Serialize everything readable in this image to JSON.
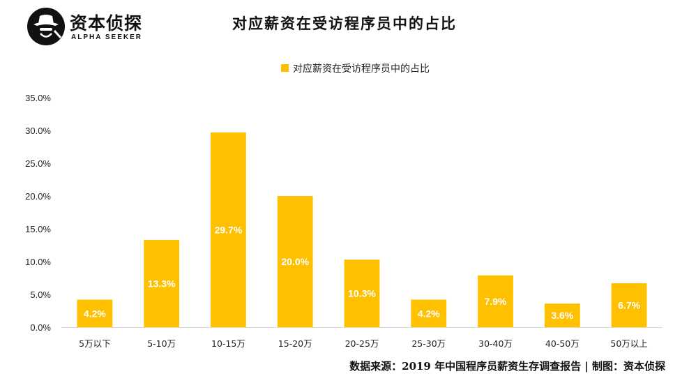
{
  "brand": {
    "name": "资本侦探",
    "tagline": "ALPHA SEEKER",
    "logo_icon": "detective-hat-icon"
  },
  "footer": {
    "source": "数据来源：2019 年中国程序员薪资生存调查报告 | 制图：资本侦探"
  },
  "colors": {
    "bar": "#FFC000",
    "axis": "#d9d9d9",
    "label": "#ffffff"
  },
  "chart_data": {
    "type": "bar",
    "title": "对应薪资在受访程序员中的占比",
    "categories": [
      "5万以下",
      "5-10万",
      "10-15万",
      "15-20万",
      "20-25万",
      "25-30万",
      "30-40万",
      "40-50万",
      "50万以上"
    ],
    "series": [
      {
        "name": "对应薪资在受访程序员中的占比",
        "values": [
          4.2,
          13.3,
          29.7,
          20.0,
          10.3,
          4.2,
          7.9,
          3.6,
          6.7
        ],
        "labels": [
          "4.2%",
          "13.3%",
          "29.7%",
          "20.0%",
          "10.3%",
          "4.2%",
          "7.9%",
          "3.6%",
          "6.7%"
        ]
      }
    ],
    "y_ticks": [
      "0.0%",
      "5.0%",
      "10.0%",
      "15.0%",
      "20.0%",
      "25.0%",
      "30.0%",
      "35.0%"
    ],
    "ylim": [
      0,
      35
    ],
    "y_unit": "%",
    "grid": false,
    "legend_position": "top"
  }
}
